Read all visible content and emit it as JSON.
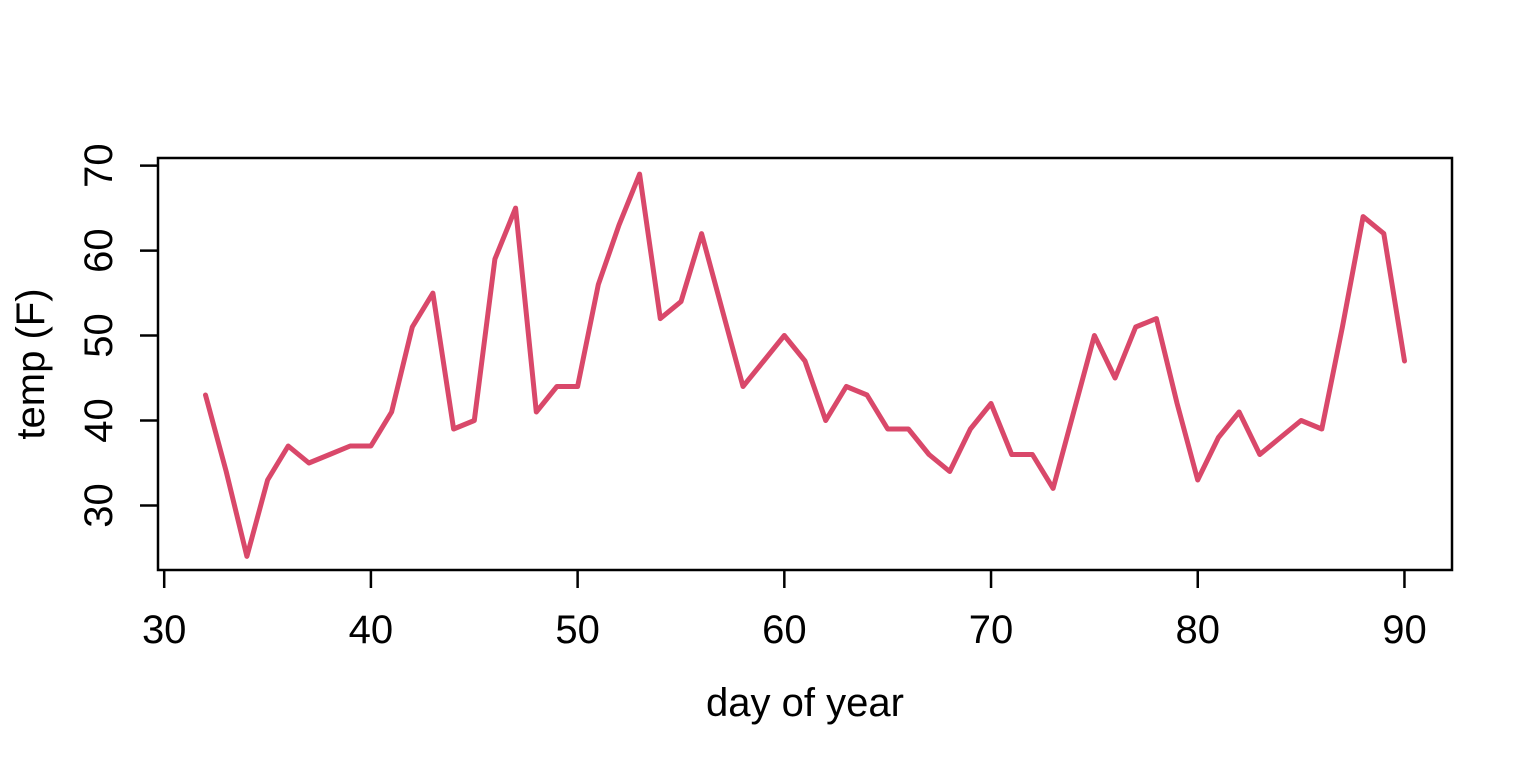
{
  "figure": {
    "background_color": "#ffffff",
    "title": ""
  },
  "chart_data": {
    "type": "line",
    "title": "",
    "xlabel": "day of year",
    "ylabel": "temp (F)",
    "series": [
      {
        "name": "temp",
        "x": [
          32,
          33,
          34,
          35,
          36,
          37,
          38,
          39,
          40,
          41,
          42,
          43,
          44,
          45,
          46,
          47,
          48,
          49,
          50,
          51,
          52,
          53,
          54,
          55,
          56,
          57,
          58,
          59,
          60,
          61,
          62,
          63,
          64,
          65,
          66,
          67,
          68,
          69,
          70,
          71,
          72,
          73,
          74,
          75,
          76,
          77,
          78,
          79,
          80,
          81,
          82,
          83,
          84,
          85,
          86,
          87,
          88,
          89,
          90
        ],
        "values": [
          43,
          34,
          24,
          33,
          37,
          35,
          36,
          37,
          37,
          41,
          51,
          55,
          39,
          40,
          59,
          65,
          41,
          44,
          44,
          56,
          63,
          69,
          52,
          54,
          62,
          53,
          44,
          47,
          50,
          47,
          40,
          44,
          43,
          39,
          39,
          36,
          34,
          39,
          42,
          36,
          36,
          32,
          41,
          50,
          45,
          51,
          52,
          42,
          33,
          38,
          41,
          36,
          38,
          40,
          39,
          51,
          64,
          62,
          47
        ]
      }
    ],
    "x_ticks": [
      30,
      40,
      50,
      60,
      70,
      80,
      90
    ],
    "y_ticks": [
      30,
      40,
      50,
      60,
      70
    ],
    "xlim": [
      29.7,
      92.3
    ],
    "ylim": [
      22.4,
      70.9
    ],
    "grid": "off",
    "legend": "none",
    "line_color": "#d9486a",
    "axis_color": "#000000",
    "text_color": "#000000"
  }
}
